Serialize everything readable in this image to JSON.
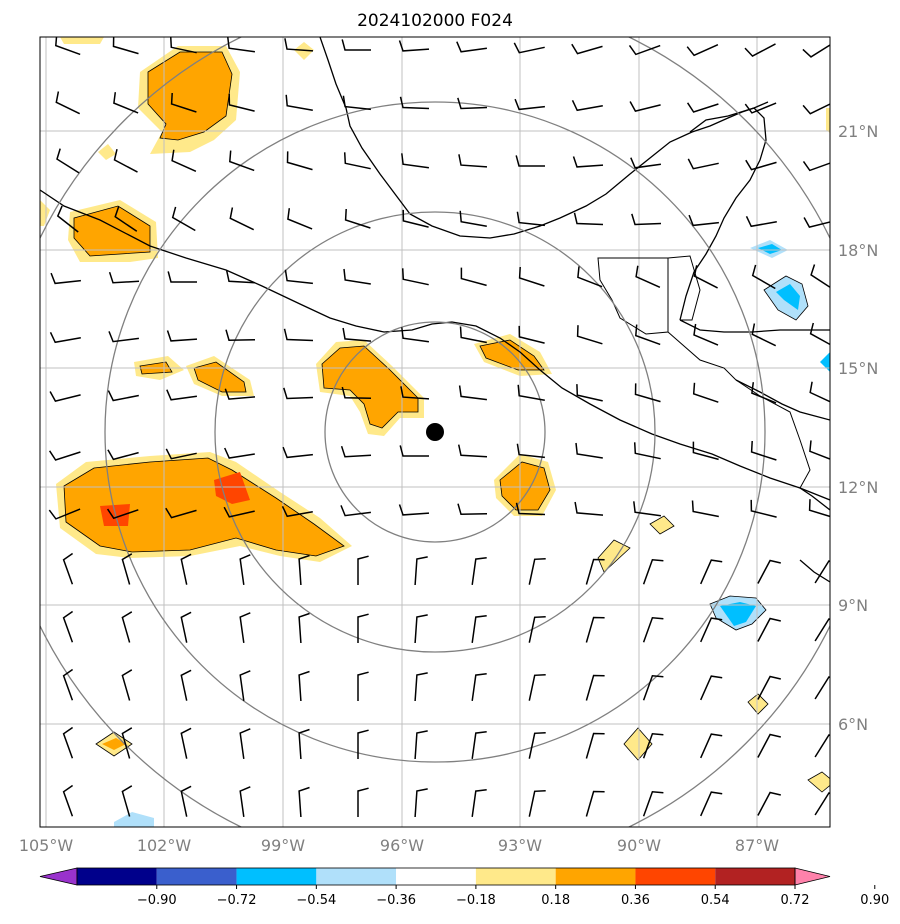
{
  "title": "2024102000 F024",
  "lon_labels": [
    "105°W",
    "102°W",
    "99°W",
    "96°W",
    "93°W",
    "90°W",
    "87°W"
  ],
  "lat_labels": [
    "21°N",
    "18°N",
    "15°N",
    "12°N",
    "9°N",
    "6°N"
  ],
  "colorbar": {
    "ticks": [
      "−0.90",
      "−0.72",
      "−0.54",
      "−0.36",
      "−0.18",
      "0.18",
      "0.36",
      "0.54",
      "0.72",
      "0.90"
    ],
    "colors": [
      "#9932cc",
      "#00008b",
      "#3a5fcd",
      "#00bfff",
      "#b0e0fa",
      "#ffffff",
      "#ffe98a",
      "#ffa500",
      "#ff4500",
      "#b22222",
      "#ff82ab"
    ]
  },
  "colors": {
    "shade_light_yellow": "#ffe98a",
    "shade_orange": "#ffa500",
    "shade_red": "#ff4500",
    "shade_light_blue": "#b0e0fa",
    "shade_blue": "#00bfff",
    "range_rings": "#808080",
    "gridlines": "#c0c0c0",
    "center_marker": "#000000"
  },
  "center_marker": {
    "lon": -95.2,
    "lat": 13.4
  },
  "range_rings_count": 4
}
